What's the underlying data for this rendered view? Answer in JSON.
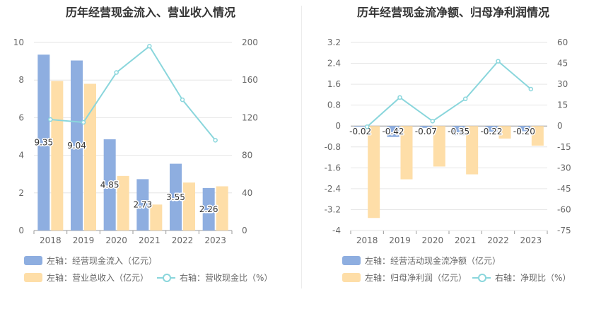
{
  "chart_data": [
    {
      "type": "bar",
      "title": "历年经营现金流入、营业收入情况",
      "categories": [
        "2018",
        "2019",
        "2020",
        "2021",
        "2022",
        "2023"
      ],
      "ylim_left": [
        0,
        10
      ],
      "yticks_left": [
        0,
        2,
        4,
        6,
        8,
        10
      ],
      "ylim_right": [
        0,
        200
      ],
      "yticks_right": [
        0,
        40,
        80,
        120,
        160,
        200
      ],
      "grid": true,
      "series": [
        {
          "name": "左轴：经营现金流入（亿元）",
          "axis": "left",
          "kind": "bar",
          "color": "#8eaee0",
          "values": [
            9.35,
            9.04,
            4.85,
            2.73,
            3.55,
            2.26
          ],
          "labels": [
            "9.35",
            "9.04",
            "4.85",
            "2.73",
            "3.55",
            "2.26"
          ]
        },
        {
          "name": "左轴：营业总收入（亿元）",
          "axis": "left",
          "kind": "bar",
          "color": "#fedea8",
          "values": [
            7.95,
            7.8,
            2.9,
            1.38,
            2.55,
            2.35
          ]
        },
        {
          "name": "右轴：营收现金比（%）",
          "axis": "right",
          "kind": "line",
          "color": "#8ad6dc",
          "values": [
            118,
            115,
            168,
            196,
            139,
            96
          ]
        }
      ]
    },
    {
      "type": "bar",
      "title": "历年经营现金流净额、归母净利润情况",
      "categories": [
        "2018",
        "2019",
        "2020",
        "2021",
        "2022",
        "2023"
      ],
      "ylim_left": [
        -4,
        3.2
      ],
      "yticks_left": [
        -4,
        -3.2,
        -2.4,
        -1.6,
        -0.8,
        0,
        0.8,
        1.6,
        2.4,
        3.2
      ],
      "ytick_labels_left": [
        "-4",
        "-3.2",
        "-2.4",
        "-1.6",
        "-0.8",
        "0",
        "0.8",
        "1.6",
        "2.4",
        "3.2"
      ],
      "ylim_right": [
        -75,
        60
      ],
      "yticks_right": [
        -75,
        -60,
        -45,
        -30,
        -15,
        0,
        15,
        30,
        45,
        60
      ],
      "grid": true,
      "series": [
        {
          "name": "左轴：经营活动现金流净额（亿元）",
          "axis": "left",
          "kind": "bar",
          "color": "#8eaee0",
          "values": [
            -0.02,
            -0.42,
            -0.07,
            -0.35,
            -0.22,
            -0.2
          ],
          "labels": [
            "-0.02",
            "-0.42",
            "-0.07",
            "-0.35",
            "-0.22",
            "-0.20"
          ]
        },
        {
          "name": "左轴：归母净利润（亿元）",
          "axis": "left",
          "kind": "bar",
          "color": "#fedea8",
          "values": [
            -3.52,
            -2.04,
            -1.55,
            -1.85,
            -0.48,
            -0.75
          ]
        },
        {
          "name": "右轴：净现比（%）",
          "axis": "right",
          "kind": "line",
          "color": "#8ad6dc",
          "values": [
            -0.5,
            20.5,
            3.5,
            19.5,
            46.5,
            26.5
          ]
        }
      ]
    }
  ]
}
